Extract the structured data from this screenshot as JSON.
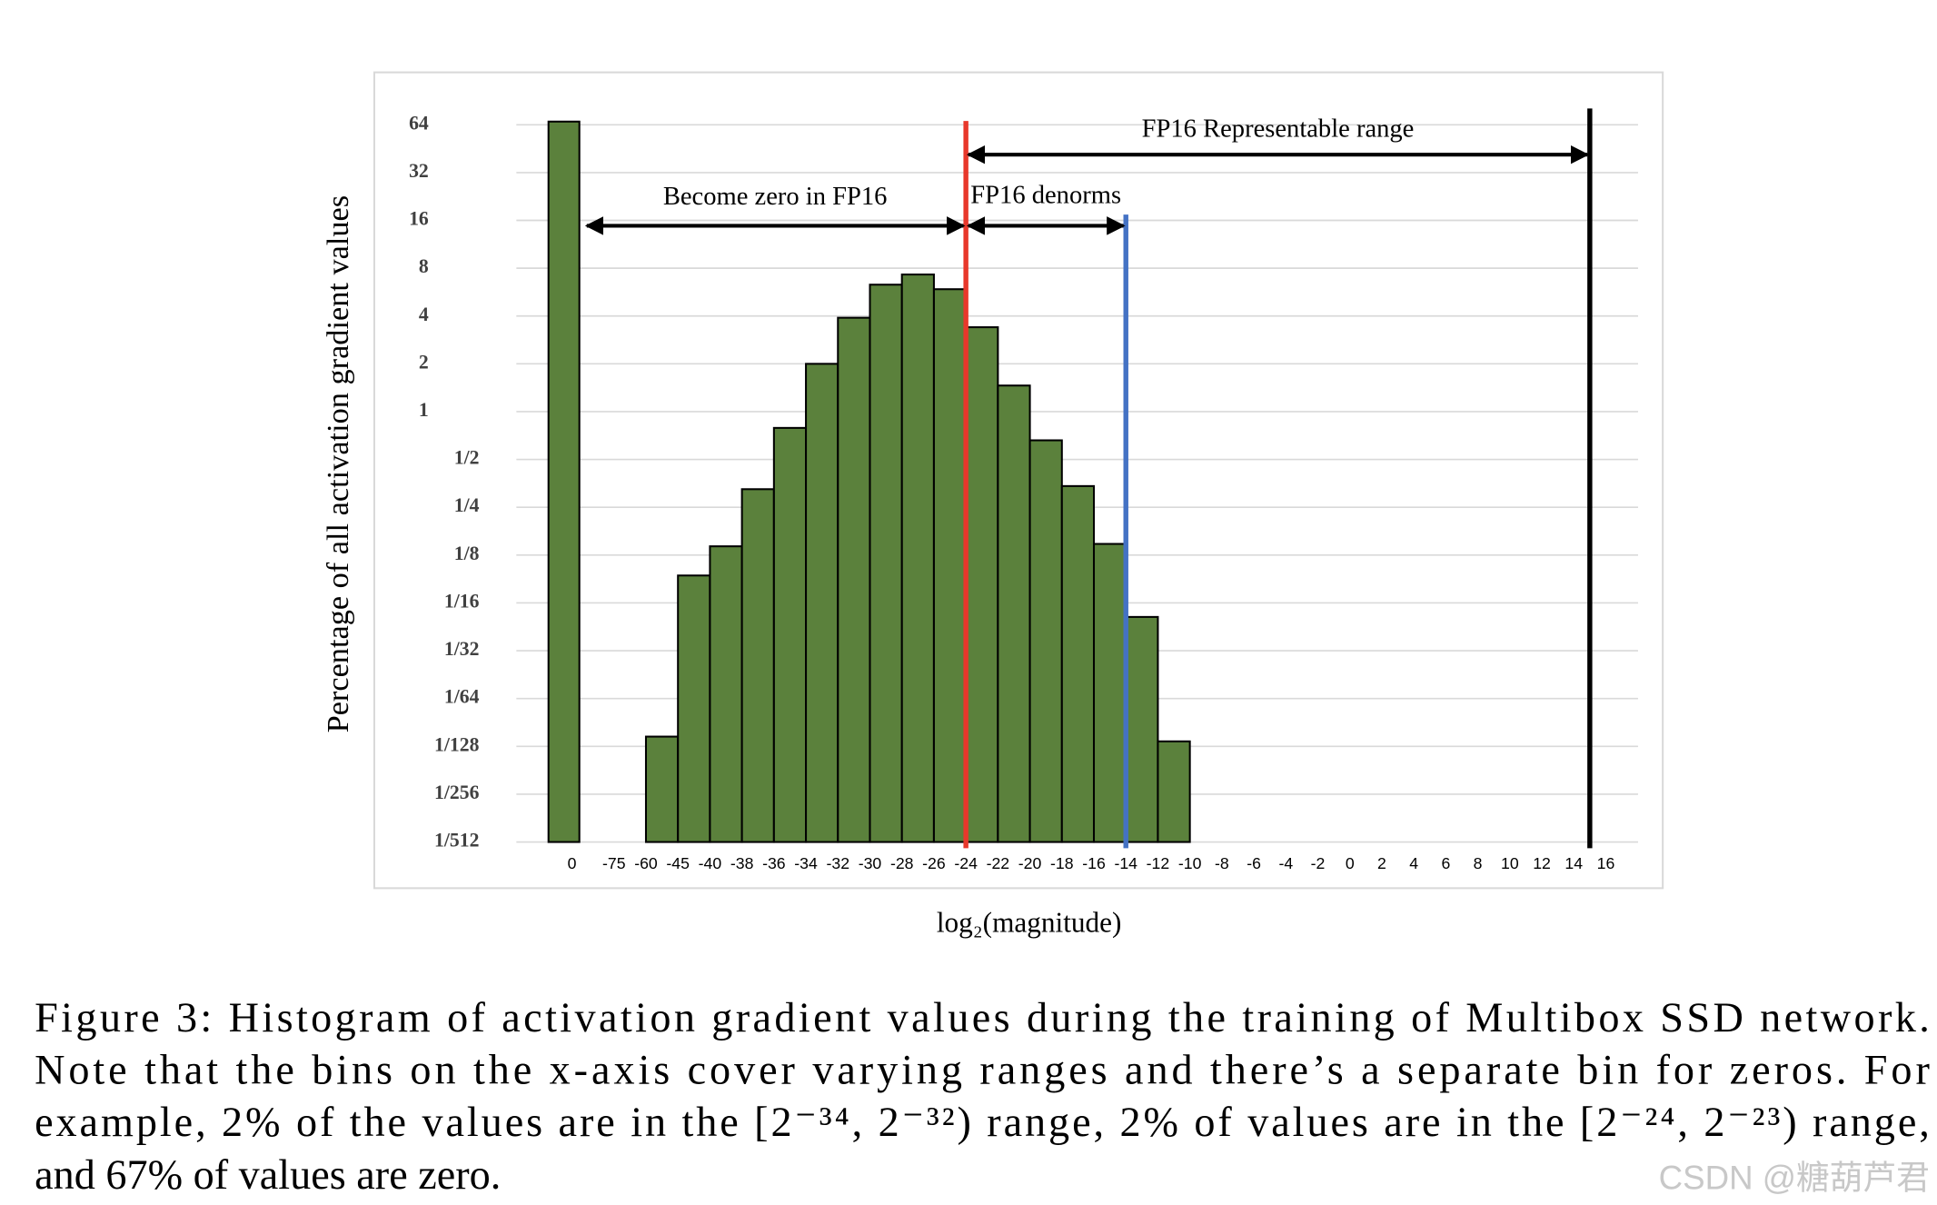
{
  "chart_data": {
    "type": "histogram",
    "ylabel": "Percentage of all activation gradient values",
    "xlabel": "log₂(magnitude)",
    "log_scale_y": 2,
    "grid": true,
    "color": "#5b813c",
    "zero_bin": {
      "label": "0",
      "value": 67
    },
    "bins": [
      -75,
      -60,
      -45,
      -40,
      -38,
      -36,
      -34,
      -32,
      -30,
      -28,
      -26,
      -24,
      -22,
      -20,
      -18,
      -16,
      -14,
      -12,
      -10,
      -8,
      -6,
      -4,
      -2,
      0,
      2,
      4,
      6,
      8,
      10,
      12,
      14,
      16
    ],
    "values": [
      null,
      0.009,
      0.093,
      0.142,
      0.325,
      0.79,
      2,
      3.9,
      6.3,
      7.3,
      5.9,
      3.4,
      1.46,
      0.66,
      0.34,
      0.147,
      0.051,
      0.0084,
      null,
      null,
      null,
      null,
      null,
      null,
      null,
      null,
      null,
      null,
      null,
      null,
      null
    ],
    "ylim": [
      0.001953125,
      64
    ],
    "yticks": [
      64,
      32,
      16,
      8,
      4,
      2,
      1,
      {
        "value": 0.5,
        "label": "1/2"
      },
      {
        "value": 0.25,
        "label": "1/4"
      },
      {
        "value": 0.125,
        "label": "1/8"
      },
      {
        "value": 0.0625,
        "label": "1/16"
      },
      {
        "value": 0.03125,
        "label": "1/32"
      },
      {
        "value": 0.015625,
        "label": "1/64"
      },
      {
        "value": 0.0078125,
        "label": "1/128"
      },
      {
        "value": 0.00390625,
        "label": "1/256"
      },
      {
        "value": 0.001953125,
        "label": "1/512"
      }
    ],
    "vlines": [
      {
        "value": -24,
        "color": "#e8382b"
      },
      {
        "value": -14,
        "color": "#4472c4"
      },
      {
        "value": 15,
        "color": "#000000"
      }
    ],
    "annotations": [
      "Become zero in FP16",
      "FP16 denorms",
      "FP16 Representable range"
    ]
  },
  "caption": [
    "Figure 3: Histogram of activation gradient values during the training of Multibox SSD network.",
    "Note that the bins on the x-axis cover varying ranges and there’s a separate bin for zeros. For",
    "example, 2% of the values are in the [2⁻³⁴, 2⁻³²) range, 2% of values are in the [2⁻²⁴, 2⁻²³) range,",
    "and 67% of values are zero."
  ],
  "watermark": "CSDN @糖葫芦君"
}
